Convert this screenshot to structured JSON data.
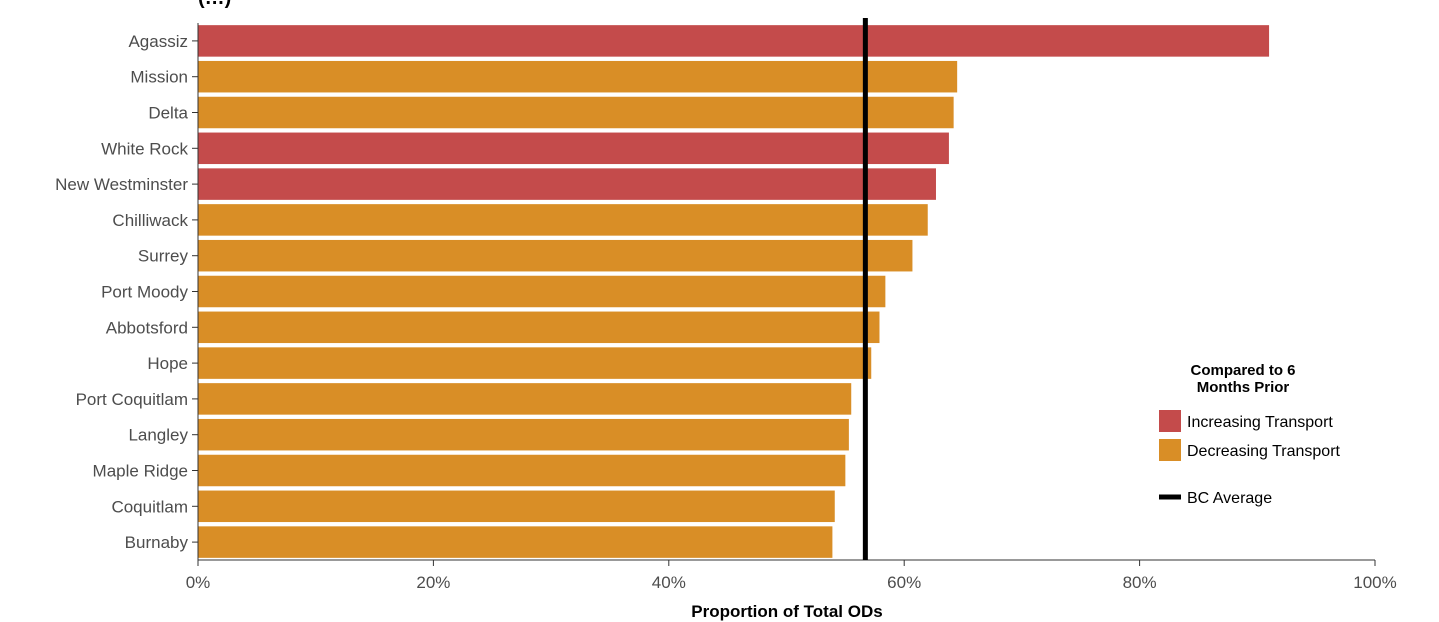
{
  "chart_data": {
    "type": "bar",
    "orientation": "horizontal",
    "title": "(…)",
    "xlabel": "Proportion of Total ODs",
    "ylabel": "",
    "xlim": [
      0,
      100
    ],
    "x_ticks": [
      "0%",
      "20%",
      "40%",
      "60%",
      "80%",
      "100%"
    ],
    "categories": [
      "Agassiz",
      "Mission",
      "Delta",
      "White Rock",
      "New Westminster",
      "Chilliwack",
      "Surrey",
      "Port Moody",
      "Abbotsford",
      "Hope",
      "Port Coquitlam",
      "Langley",
      "Maple Ridge",
      "Coquitlam",
      "Burnaby"
    ],
    "values": [
      91.0,
      64.5,
      64.2,
      63.8,
      62.7,
      62.0,
      60.7,
      58.4,
      57.9,
      57.2,
      55.5,
      55.3,
      55.0,
      54.1,
      53.9
    ],
    "groups": [
      "Increasing Transport",
      "Decreasing Transport",
      "Decreasing Transport",
      "Increasing Transport",
      "Increasing Transport",
      "Decreasing Transport",
      "Decreasing Transport",
      "Decreasing Transport",
      "Decreasing Transport",
      "Decreasing Transport",
      "Decreasing Transport",
      "Decreasing Transport",
      "Decreasing Transport",
      "Decreasing Transport",
      "Decreasing Transport"
    ],
    "reference_line": {
      "label": "BC Average",
      "value": 56.7,
      "color": "#000000"
    },
    "legend": {
      "title": "Compared to 6 Months Prior",
      "title_lines": [
        "Compared to 6",
        "Months Prior"
      ],
      "position": "right",
      "items": [
        {
          "label": "Increasing Transport",
          "color": "#c44b4b"
        },
        {
          "label": "Decreasing Transport",
          "color": "#d98e26"
        }
      ]
    },
    "grid": false
  }
}
